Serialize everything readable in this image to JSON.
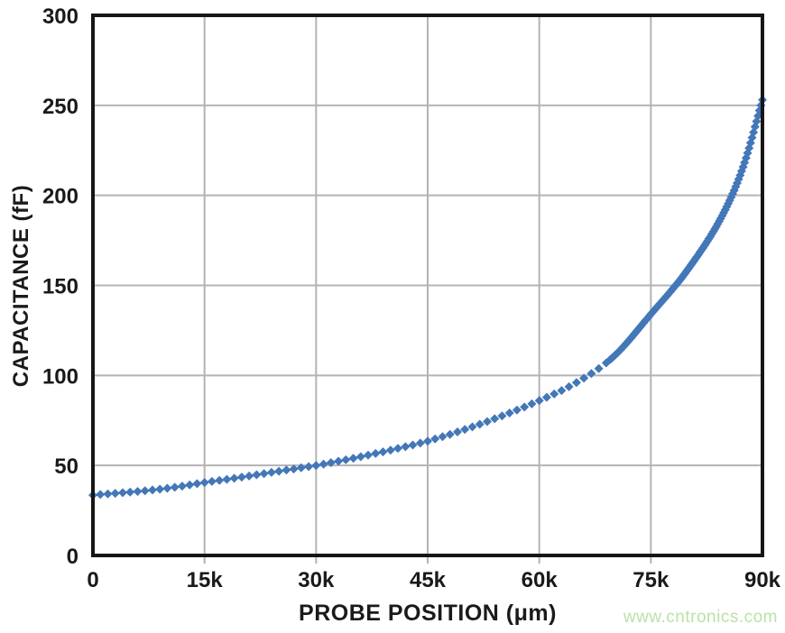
{
  "chart_data": {
    "type": "scatter",
    "title": "",
    "xlabel": "PROBE POSITION (μm)",
    "ylabel": "CAPACITANCE (fF)",
    "xlim": [
      0,
      90000
    ],
    "ylim": [
      0,
      300
    ],
    "grid": true,
    "legend": "none",
    "x_ticks": [
      {
        "value": 0,
        "label": "0"
      },
      {
        "value": 15000,
        "label": "15k"
      },
      {
        "value": 30000,
        "label": "30k"
      },
      {
        "value": 45000,
        "label": "45k"
      },
      {
        "value": 60000,
        "label": "60k"
      },
      {
        "value": 75000,
        "label": "75k"
      },
      {
        "value": 90000,
        "label": "90k"
      }
    ],
    "y_ticks": [
      {
        "value": 0,
        "label": "0"
      },
      {
        "value": 50,
        "label": "50"
      },
      {
        "value": 100,
        "label": "100"
      },
      {
        "value": 150,
        "label": "150"
      },
      {
        "value": 200,
        "label": "200"
      },
      {
        "value": 250,
        "label": "250"
      },
      {
        "value": 300,
        "label": "300"
      }
    ],
    "series": [
      {
        "name": "capacitance-vs-probe-position",
        "marker": "diamond",
        "color": "#4377b8",
        "anchors": [
          [
            0,
            33.5
          ],
          [
            5000,
            35.2
          ],
          [
            10000,
            37.3
          ],
          [
            15000,
            40.5
          ],
          [
            20000,
            43.5
          ],
          [
            25000,
            46.8
          ],
          [
            30000,
            50
          ],
          [
            35000,
            54
          ],
          [
            40000,
            58.5
          ],
          [
            45000,
            63.5
          ],
          [
            50000,
            70
          ],
          [
            55000,
            77.5
          ],
          [
            60000,
            86
          ],
          [
            65000,
            96
          ],
          [
            70000,
            110.5
          ],
          [
            75000,
            134
          ],
          [
            80000,
            159
          ],
          [
            85000,
            192
          ],
          [
            87500,
            217
          ],
          [
            90000,
            253
          ]
        ],
        "sampling": {
          "coarse_step": 1000,
          "coarse_until": 69000,
          "dense_from": 69600,
          "dense_step": 200,
          "x_end": 90000
        }
      }
    ],
    "colors": {
      "axis": "#161616",
      "grid": "#b3b3b3",
      "text": "#1a1a1a",
      "background": "#ffffff"
    }
  },
  "watermark": {
    "text": "www.cntronics.com",
    "color": "#b9e2a8"
  }
}
